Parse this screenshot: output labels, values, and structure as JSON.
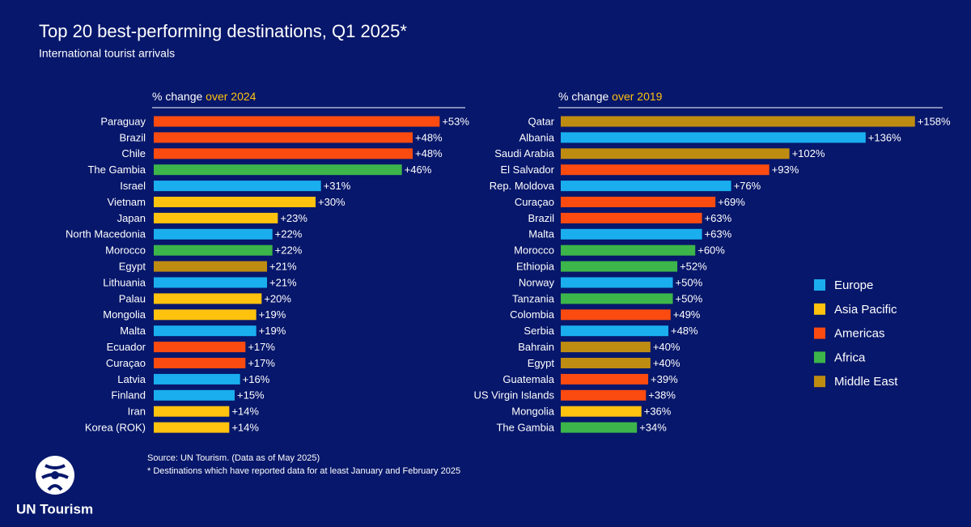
{
  "header": {
    "title": "Top 20 best-performing destinations, Q1 2025*",
    "subtitle": "International tourist arrivals"
  },
  "chart_data": [
    {
      "type": "bar",
      "orientation": "horizontal",
      "x_label": "% change",
      "x_label_highlight": "over 2024",
      "categories": [
        "Paraguay",
        "Brazil",
        "Chile",
        "The Gambia",
        "Israel",
        "Vietnam",
        "Japan",
        "North Macedonia",
        "Morocco",
        "Egypt",
        "Lithuania",
        "Palau",
        "Mongolia",
        "Malta",
        "Ecuador",
        "Curaçao",
        "Latvia",
        "Finland",
        "Iran",
        "Korea (ROK)"
      ],
      "values": [
        53,
        48,
        48,
        46,
        31,
        30,
        23,
        22,
        22,
        21,
        21,
        20,
        19,
        19,
        17,
        17,
        16,
        15,
        14,
        14
      ],
      "value_labels": [
        "+53%",
        "+48%",
        "+48%",
        "+46%",
        "+31%",
        "+30%",
        "+23%",
        "+22%",
        "+22%",
        "+21%",
        "+21%",
        "+20%",
        "+19%",
        "+19%",
        "+17%",
        "+17%",
        "+16%",
        "+15%",
        "+14%",
        "+14%"
      ],
      "colors": [
        "#fb4b10",
        "#fb4b10",
        "#fb4b10",
        "#3cb54a",
        "#1aaeef",
        "#ffc20e",
        "#ffc20e",
        "#1aaeef",
        "#3cb54a",
        "#bf8c12",
        "#1aaeef",
        "#ffc20e",
        "#ffc20e",
        "#1aaeef",
        "#fb4b10",
        "#fb4b10",
        "#1aaeef",
        "#1aaeef",
        "#ffc20e",
        "#ffc20e"
      ],
      "xlim": [
        0,
        60
      ]
    },
    {
      "type": "bar",
      "orientation": "horizontal",
      "x_label": "% change",
      "x_label_highlight": "over 2019",
      "categories": [
        "Qatar",
        "Albania",
        "Saudi Arabia",
        "El Salvador",
        "Rep. Moldova",
        "Curaçao",
        "Brazil",
        "Malta",
        "Morocco",
        "Ethiopia",
        "Norway",
        "Tanzania",
        "Colombia",
        "Serbia",
        "Bahrain",
        "Egypt",
        "Guatemala",
        "US Virgin Islands",
        "Mongolia",
        "The Gambia"
      ],
      "values": [
        158,
        136,
        102,
        93,
        76,
        69,
        63,
        63,
        60,
        52,
        50,
        50,
        49,
        48,
        40,
        40,
        39,
        38,
        36,
        34
      ],
      "value_labels": [
        "+158%",
        "+136%",
        "+102%",
        "+93%",
        "+76%",
        "+69%",
        "+63%",
        "+63%",
        "+60%",
        "+52%",
        "+50%",
        "+50%",
        "+49%",
        "+48%",
        "+40%",
        "+40%",
        "+39%",
        "+38%",
        "+36%",
        "+34%"
      ],
      "colors": [
        "#bf8c12",
        "#1aaeef",
        "#bf8c12",
        "#fb4b10",
        "#1aaeef",
        "#fb4b10",
        "#fb4b10",
        "#1aaeef",
        "#3cb54a",
        "#3cb54a",
        "#1aaeef",
        "#3cb54a",
        "#fb4b10",
        "#1aaeef",
        "#bf8c12",
        "#bf8c12",
        "#fb4b10",
        "#fb4b10",
        "#ffc20e",
        "#3cb54a"
      ],
      "xlim": [
        0,
        170
      ]
    }
  ],
  "legend": [
    {
      "name": "Europe",
      "color": "#1aaeef"
    },
    {
      "name": "Asia Pacific",
      "color": "#ffc20e"
    },
    {
      "name": "Americas",
      "color": "#fb4b10"
    },
    {
      "name": "Africa",
      "color": "#3cb54a"
    },
    {
      "name": "Middle East",
      "color": "#bf8c12"
    }
  ],
  "source": [
    "Source: UN Tourism. (Data as of May 2025)",
    "* Destinations which have reported data for at least January and February 2025"
  ],
  "logo": {
    "text": "UN Tourism"
  }
}
